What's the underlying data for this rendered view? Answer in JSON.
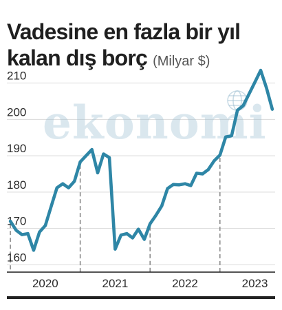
{
  "header": {
    "title": "Vadesine en fazla bir yıl kalan dış borç",
    "unit": "(Milyar $)"
  },
  "watermark": {
    "text": "ekonomi",
    "logo": "ekonomi-globe-logo"
  },
  "colors": {
    "line": "#2e86a6",
    "watermark": "#9ec0d1",
    "axis": "#1a1a1a",
    "gridline": "#d9d9d9",
    "year_divider": "#8a8a8a"
  },
  "chart_data": {
    "type": "line",
    "title": "Vadesine en fazla bir yıl kalan dış borç",
    "subtitle": "(Milyar $)",
    "xlabel": "",
    "ylabel": "",
    "ylim": [
      158,
      212
    ],
    "yticks": [
      160,
      170,
      180,
      190,
      200,
      210
    ],
    "xticks": [
      {
        "label": "2020",
        "at": 2020.0
      },
      {
        "label": "2021",
        "at": 2021.0
      },
      {
        "label": "2022",
        "at": 2022.0
      },
      {
        "label": "2023",
        "at": 2023.0
      }
    ],
    "year_dividers": [
      2019.5,
      2020.5,
      2021.5,
      2022.5
    ],
    "xlim": [
      2019.45,
      2023.29
    ],
    "grid": false,
    "legend": "none",
    "x": [
      2019.5,
      2019.583,
      2019.667,
      2019.75,
      2019.833,
      2019.917,
      2020.0,
      2020.083,
      2020.167,
      2020.25,
      2020.333,
      2020.417,
      2020.5,
      2020.583,
      2020.667,
      2020.75,
      2020.833,
      2020.917,
      2021.0,
      2021.083,
      2021.167,
      2021.25,
      2021.333,
      2021.417,
      2021.5,
      2021.583,
      2021.667,
      2021.75,
      2021.833,
      2021.917,
      2022.0,
      2022.083,
      2022.167,
      2022.25,
      2022.333,
      2022.417,
      2022.5,
      2022.583,
      2022.667,
      2022.75,
      2022.833,
      2022.917,
      2023.0,
      2023.083,
      2023.167,
      2023.25
    ],
    "series": [
      {
        "values": [
          172,
          169.5,
          168.3,
          168.6,
          164,
          169,
          170.8,
          176,
          181.2,
          182.3,
          181.2,
          183,
          188.3,
          190,
          191.7,
          185.3,
          190.5,
          189.5,
          164.3,
          168.2,
          168.6,
          167.4,
          169.8,
          167,
          171.3,
          173.6,
          176.2,
          181,
          182.1,
          182,
          182.3,
          181.8,
          185.2,
          185,
          186.2,
          188.6,
          190.2,
          195.2,
          195.5,
          202.5,
          203.8,
          207,
          210.2,
          213.5,
          208.6,
          202.8
        ]
      }
    ]
  }
}
